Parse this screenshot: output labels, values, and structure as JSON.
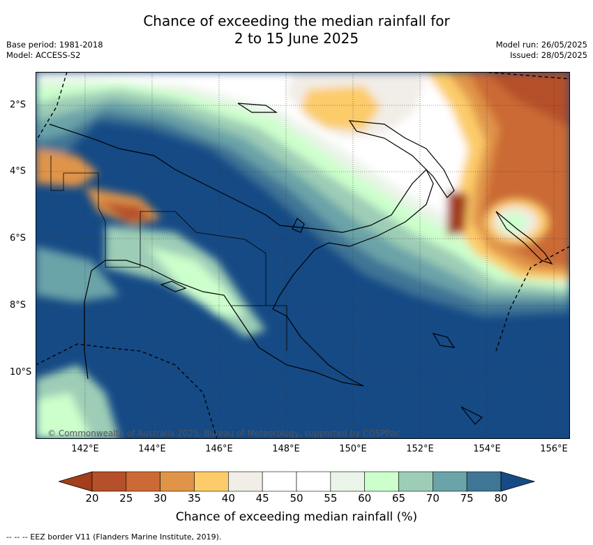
{
  "title_line1": "Chance of exceeding the median rainfall for",
  "title_line2": "2 to 15 June 2025",
  "base_period": "Base period: 1981-2018",
  "model": "Model: ACCESS-S2",
  "model_run": "Model run: 26/05/2025",
  "issued": "Issued: 28/05/2025",
  "copyright": "© Commonwealth of Australia 2025, Bureau of Meteorology, supported by COSPPac",
  "colorbar_title": "Chance of exceeding median rainfall (%)",
  "footnote": "--  --  -- EEZ border V11 (Flanders Marine Institute, 2019).",
  "x_ticks": [
    "142°E",
    "144°E",
    "146°E",
    "148°E",
    "150°E",
    "152°E",
    "154°E",
    "156°E"
  ],
  "y_ticks": [
    "2°S",
    "4°S",
    "6°S",
    "8°S",
    "10°S"
  ],
  "colorbar": {
    "labels": [
      "20",
      "25",
      "30",
      "35",
      "40",
      "45",
      "50",
      "55",
      "60",
      "65",
      "70",
      "75",
      "80"
    ],
    "colors": [
      "#a23e1a",
      "#b5502a",
      "#cb6a34",
      "#e09448",
      "#fccc6a",
      "#f1ede7",
      "#ffffff",
      "#ffffff",
      "#eaf4e8",
      "#ccffcc",
      "#9dcdb6",
      "#6aa3a8",
      "#3f7595",
      "#154a85"
    ]
  },
  "map": {
    "lon_range": [
      140.5,
      156.5
    ],
    "lat_range": [
      -12.0,
      -1.0
    ]
  }
}
